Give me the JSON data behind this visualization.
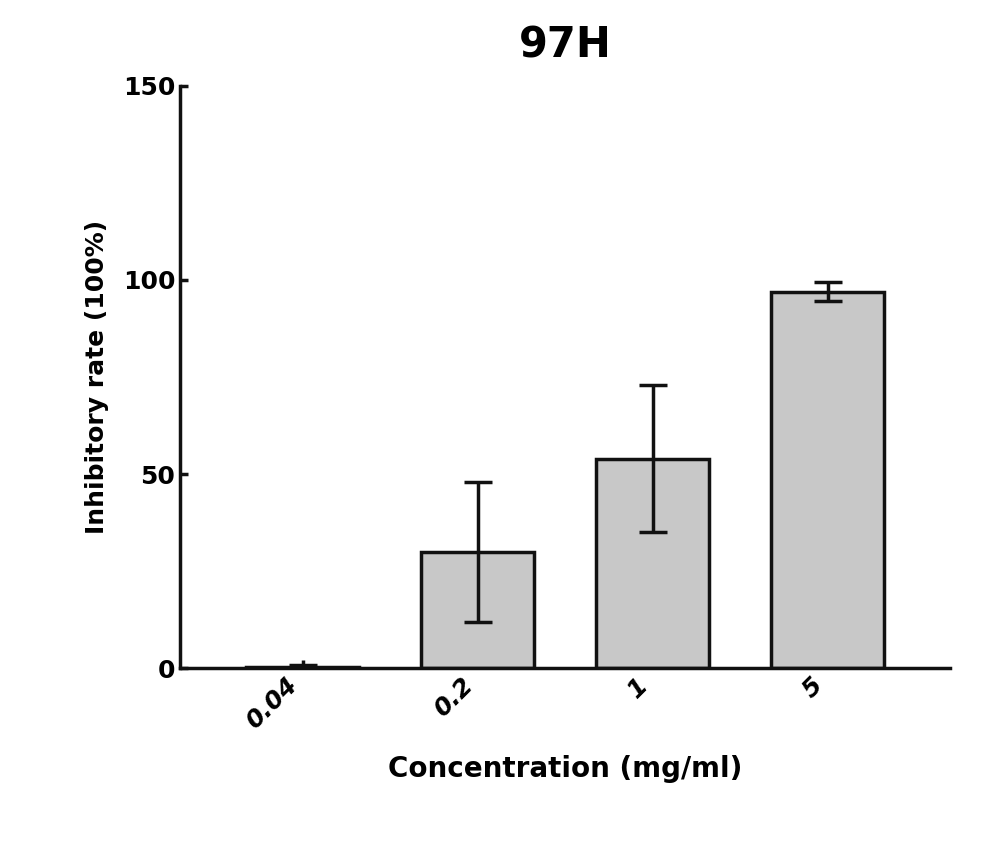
{
  "title": "97H",
  "xlabel": "Concentration (mg/ml)",
  "ylabel": "Inhibitory rate (100%)",
  "categories": [
    "0.04",
    "0.2",
    "1",
    "5"
  ],
  "values": [
    0.5,
    30.0,
    54.0,
    97.0
  ],
  "errors": [
    0.5,
    18.0,
    19.0,
    2.5
  ],
  "bar_color": "#C8C8C8",
  "bar_edgecolor": "#111111",
  "ylim": [
    0,
    150
  ],
  "yticks": [
    0,
    50,
    100,
    150
  ],
  "title_fontsize": 30,
  "xlabel_fontsize": 20,
  "ylabel_fontsize": 18,
  "tick_fontsize": 18,
  "bar_width": 0.65,
  "background_color": "#FFFFFF",
  "spine_linewidth": 2.5,
  "errorbar_capsize": 10,
  "errorbar_linewidth": 2.5,
  "errorbar_color": "#111111"
}
